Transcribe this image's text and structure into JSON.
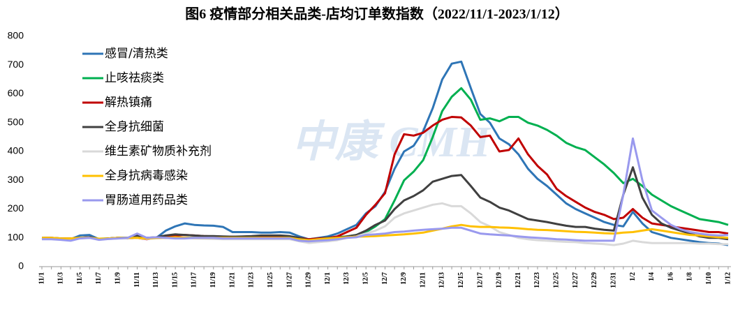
{
  "chart_data": {
    "type": "line",
    "title": "图6 疫情部分相关品类-店均订单数指数（2022/11/1-2023/1/12）",
    "watermark": "中康 CMH",
    "categories": [
      "11/1",
      null,
      "11/3",
      null,
      "11/5",
      null,
      "11/7",
      null,
      "11/9",
      null,
      "11/11",
      null,
      "11/13",
      null,
      "11/15",
      null,
      "11/17",
      null,
      "11/19",
      null,
      "11/21",
      null,
      "11/23",
      null,
      "11/25",
      null,
      "11/27",
      null,
      "11/29",
      null,
      "12/1",
      null,
      "12/3",
      null,
      "12/5",
      null,
      "12/7",
      null,
      "12/9",
      null,
      "12/11",
      null,
      "12/13",
      null,
      "12/15",
      null,
      "12/17",
      null,
      "12/19",
      null,
      "12/21",
      null,
      "12/23",
      null,
      "12/25",
      null,
      "12/27",
      null,
      "12/29",
      null,
      "12/31",
      null,
      "1/2",
      null,
      "1/4",
      null,
      "1/6",
      null,
      "1/8",
      null,
      "1/10",
      null,
      "1/12"
    ],
    "series": [
      {
        "name": "感冒/清热类",
        "color": "#2e75b6",
        "values": [
          100,
          98,
          97,
          95,
          108,
          110,
          95,
          98,
          100,
          100,
          105,
          98,
          100,
          125,
          140,
          150,
          145,
          143,
          142,
          138,
          120,
          120,
          120,
          118,
          118,
          120,
          118,
          105,
          95,
          100,
          105,
          115,
          130,
          145,
          185,
          210,
          260,
          340,
          400,
          420,
          470,
          550,
          650,
          705,
          712,
          620,
          530,
          500,
          445,
          425,
          390,
          340,
          305,
          280,
          250,
          220,
          200,
          185,
          170,
          155,
          145,
          140,
          190,
          150,
          120,
          110,
          100,
          95,
          90,
          85,
          82,
          80,
          75
        ]
      },
      {
        "name": "止咳祛痰类",
        "color": "#00b050",
        "values": [
          100,
          100,
          98,
          98,
          100,
          100,
          97,
          98,
          100,
          100,
          102,
          100,
          100,
          100,
          102,
          100,
          100,
          100,
          100,
          100,
          100,
          98,
          100,
          100,
          100,
          100,
          100,
          100,
          95,
          98,
          100,
          102,
          105,
          110,
          120,
          140,
          165,
          230,
          300,
          330,
          370,
          450,
          540,
          590,
          620,
          580,
          510,
          515,
          505,
          520,
          520,
          500,
          490,
          475,
          455,
          430,
          415,
          405,
          380,
          355,
          325,
          290,
          305,
          280,
          250,
          230,
          210,
          195,
          180,
          165,
          160,
          155,
          145
        ]
      },
      {
        "name": "解热镇痛",
        "color": "#c00000",
        "values": [
          100,
          100,
          98,
          98,
          100,
          102,
          95,
          98,
          100,
          98,
          100,
          95,
          100,
          105,
          108,
          110,
          108,
          106,
          105,
          104,
          104,
          104,
          104,
          105,
          105,
          105,
          104,
          100,
          95,
          98,
          100,
          105,
          120,
          135,
          180,
          215,
          255,
          390,
          460,
          455,
          465,
          490,
          510,
          520,
          518,
          490,
          450,
          455,
          400,
          405,
          445,
          390,
          350,
          320,
          270,
          245,
          225,
          205,
          190,
          180,
          165,
          170,
          200,
          170,
          150,
          145,
          140,
          135,
          130,
          125,
          120,
          120,
          115
        ]
      },
      {
        "name": "全身抗细菌",
        "color": "#404040",
        "values": [
          100,
          98,
          97,
          95,
          100,
          102,
          96,
          98,
          100,
          100,
          108,
          100,
          102,
          108,
          112,
          110,
          108,
          106,
          106,
          105,
          104,
          105,
          106,
          108,
          108,
          108,
          106,
          100,
          92,
          95,
          100,
          100,
          105,
          110,
          125,
          145,
          160,
          200,
          230,
          245,
          265,
          295,
          305,
          315,
          318,
          280,
          240,
          225,
          205,
          195,
          180,
          165,
          160,
          155,
          148,
          142,
          138,
          138,
          132,
          128,
          125,
          250,
          345,
          240,
          180,
          150,
          135,
          125,
          115,
          105,
          100,
          100,
          95
        ]
      },
      {
        "name": "维生素矿物质补充剂",
        "color": "#d9d9d9",
        "values": [
          100,
          98,
          97,
          95,
          100,
          100,
          95,
          96,
          98,
          98,
          100,
          96,
          98,
          100,
          100,
          100,
          98,
          97,
          96,
          95,
          95,
          95,
          95,
          95,
          95,
          95,
          95,
          88,
          82,
          85,
          88,
          92,
          100,
          105,
          115,
          125,
          140,
          170,
          185,
          195,
          205,
          215,
          220,
          210,
          210,
          185,
          155,
          140,
          120,
          110,
          100,
          95,
          92,
          90,
          88,
          86,
          85,
          82,
          80,
          78,
          75,
          80,
          90,
          85,
          82,
          82,
          82,
          82,
          82,
          80,
          80,
          78,
          78
        ]
      },
      {
        "name": "全身抗病毒感染",
        "color": "#ffc000",
        "values": [
          100,
          100,
          98,
          98,
          100,
          100,
          97,
          98,
          100,
          100,
          100,
          98,
          100,
          100,
          102,
          100,
          100,
          100,
          100,
          100,
          100,
          100,
          100,
          100,
          100,
          100,
          100,
          95,
          92,
          95,
          98,
          100,
          102,
          104,
          105,
          106,
          108,
          110,
          112,
          115,
          118,
          125,
          132,
          140,
          145,
          140,
          138,
          138,
          136,
          135,
          133,
          130,
          128,
          127,
          125,
          123,
          121,
          120,
          118,
          116,
          115,
          118,
          120,
          125,
          130,
          125,
          120,
          115,
          110,
          108,
          105,
          102,
          100
        ]
      },
      {
        "name": "胃肠道用药品类",
        "color": "#9999ee",
        "values": [
          95,
          95,
          93,
          90,
          98,
          100,
          93,
          96,
          98,
          100,
          115,
          100,
          102,
          100,
          98,
          98,
          100,
          100,
          100,
          98,
          98,
          98,
          98,
          98,
          98,
          98,
          98,
          90,
          88,
          90,
          92,
          95,
          100,
          102,
          110,
          112,
          115,
          120,
          122,
          125,
          128,
          130,
          132,
          135,
          135,
          125,
          115,
          112,
          110,
          108,
          105,
          102,
          100,
          98,
          95,
          94,
          92,
          90,
          90,
          90,
          90,
          250,
          445,
          300,
          195,
          170,
          145,
          130,
          120,
          115,
          110,
          108,
          110
        ]
      }
    ],
    "ylim": [
      0,
      800
    ],
    "yticks": [
      0,
      100,
      200,
      300,
      400,
      500,
      600,
      700,
      800
    ],
    "grid": false,
    "legend": "upper-left"
  }
}
